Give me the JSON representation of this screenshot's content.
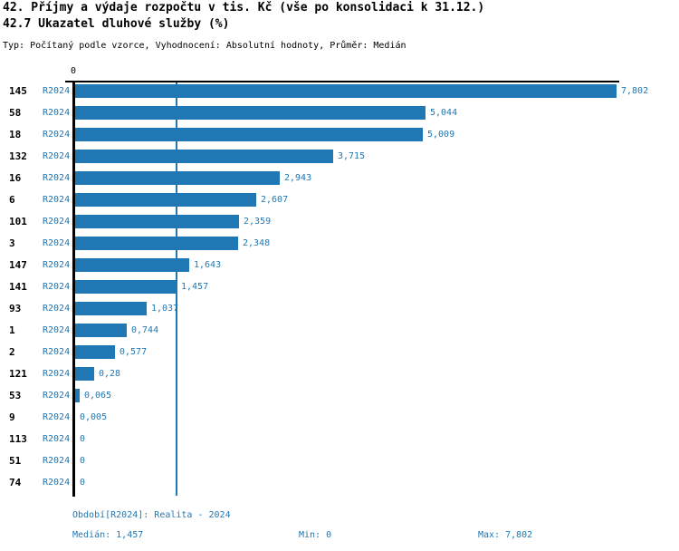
{
  "title_line1": "42. Příjmy a výdaje rozpočtu v tis. Kč (vše po konsolidaci k 31.12.)",
  "title_line2": "42.7 Ukazatel dluhové služby (%)",
  "subtitle": "Typ: Počítaný podle vzorce, Vyhodnocení: Absolutní hodnoty, Průměr: Medián",
  "colors": {
    "bar": "#1f77b4",
    "label_blue": "#1f77b4",
    "axis_black": "#000000",
    "background": "#ffffff"
  },
  "chart_data": {
    "type": "bar",
    "orientation": "horizontal",
    "axis_zero_label": "0",
    "series_label": "R2024",
    "categories": [
      "145",
      "58",
      "18",
      "132",
      "16",
      "6",
      "101",
      "3",
      "147",
      "141",
      "93",
      "1",
      "2",
      "121",
      "53",
      "9",
      "113",
      "51",
      "74"
    ],
    "values": [
      7.802,
      5.044,
      5.009,
      3.715,
      2.943,
      2.607,
      2.359,
      2.348,
      1.643,
      1.457,
      1.037,
      0.744,
      0.577,
      0.28,
      0.065,
      0.005,
      0,
      0,
      0
    ],
    "value_labels": [
      "7,802",
      "5,044",
      "5,009",
      "3,715",
      "2,943",
      "2,607",
      "2,359",
      "2,348",
      "1,643",
      "1,457",
      "1,037",
      "0,744",
      "0,577",
      "0,28",
      "0,065",
      "0,005",
      "0",
      "0",
      "0"
    ],
    "xmax": 7.802,
    "xmin": 0,
    "median_line": 1.457,
    "grid": "median-line-only",
    "legend_position": "none"
  },
  "footer": {
    "period": "Období[R2024]: Realita - 2024",
    "median": "Medián: 1,457",
    "min": "Min: 0",
    "max": "Max: 7,802"
  }
}
